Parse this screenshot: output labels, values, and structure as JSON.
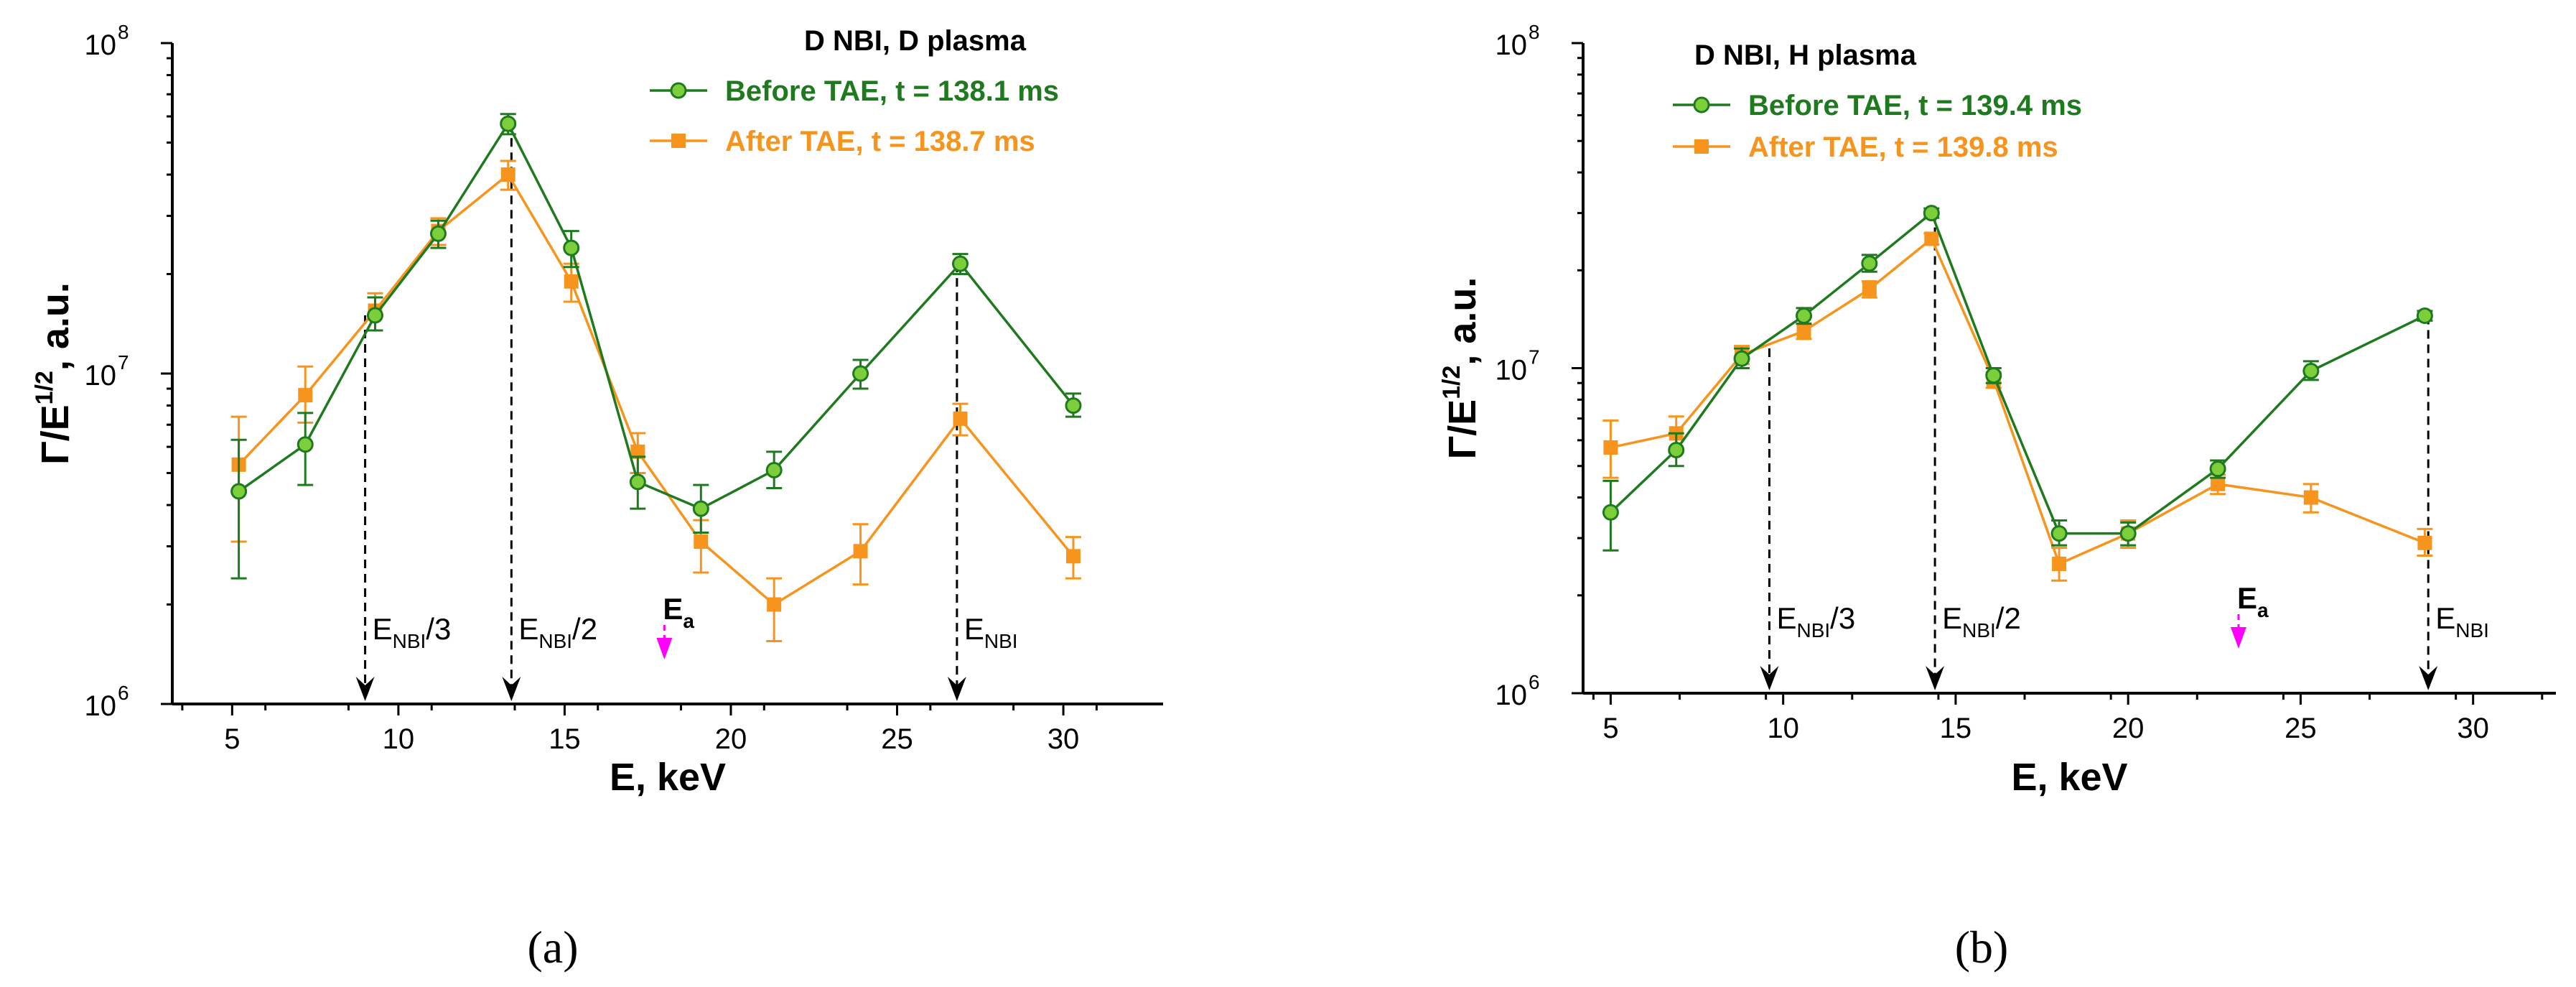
{
  "colors": {
    "before": "#1f7a1f",
    "before_marker": "#7ccf3a",
    "after": "#f7941d",
    "ea": "#ff00ff",
    "axis": "#000000"
  },
  "chart_data": [
    {
      "type": "line",
      "panel_caption": "(a)",
      "legend_title": "D NBI, D plasma",
      "xlabel": "E, keV",
      "ylabel": "Γ/E",
      "ylabel_exp": "1/2",
      "ylabel_suffix": ", a.u.",
      "xlim": [
        3.2,
        33
      ],
      "ylim_log10": [
        6,
        8
      ],
      "xticks": [
        5,
        10,
        15,
        20,
        25,
        30
      ],
      "yticks": [
        {
          "base": "10",
          "exp": "6",
          "log": 6
        },
        {
          "base": "10",
          "exp": "7",
          "log": 7
        },
        {
          "base": "10",
          "exp": "8",
          "log": 8
        }
      ],
      "series": [
        {
          "name": "Before TAE, t = 138.1 ms",
          "key": "before",
          "marker": "circle",
          "x": [
            5.2,
            7.2,
            9.3,
            11.2,
            13.3,
            15.2,
            17.2,
            19.1,
            21.3,
            23.9,
            26.9,
            30.3
          ],
          "y": [
            4400000.0,
            6100000.0,
            15000000.0,
            26500000.0,
            57000000.0,
            24000000.0,
            4700000.0,
            3900000.0,
            5100000.0,
            10000000.0,
            21500000.0,
            8000000.0
          ],
          "err_lo": [
            2400000.0,
            4600000.0,
            13500000.0,
            24000000.0,
            53000000.0,
            21000000.0,
            3900000.0,
            3300000.0,
            4500000.0,
            9000000.0,
            20000000.0,
            7400000.0
          ],
          "err_hi": [
            6300000.0,
            7600000.0,
            17000000.0,
            29000000.0,
            61000000.0,
            27000000.0,
            5600000.0,
            4600000.0,
            5800000.0,
            11000000.0,
            23000000.0,
            8700000.0
          ]
        },
        {
          "name": "After TAE, t = 138.7 ms",
          "key": "after",
          "marker": "square",
          "x": [
            5.2,
            7.2,
            9.3,
            11.2,
            13.3,
            15.2,
            17.2,
            19.1,
            21.3,
            23.9,
            26.9,
            30.3
          ],
          "y": [
            5300000.0,
            8600000.0,
            15500000.0,
            27000000.0,
            40000000.0,
            19000000.0,
            5800000.0,
            3100000.0,
            2000000.0,
            2900000.0,
            7300000.0,
            2800000.0
          ],
          "err_lo": [
            3100000.0,
            7100000.0,
            13500000.0,
            24500000.0,
            36000000.0,
            16500000.0,
            5000000.0,
            2500000.0,
            1550000.0,
            2300000.0,
            6500000.0,
            2400000.0
          ],
          "err_hi": [
            7400000.0,
            10500000.0,
            17500000.0,
            29500000.0,
            44000000.0,
            21500000.0,
            6600000.0,
            3600000.0,
            2400000.0,
            3500000.0,
            8100000.0,
            3200000.0
          ]
        }
      ],
      "markers": [
        {
          "x": 9.0,
          "top": 15000000.0,
          "label": "E",
          "sub": "NBI",
          "suffix": "/3",
          "kind": "dashed"
        },
        {
          "x": 13.4,
          "top": 57000000.0,
          "label": "E",
          "sub": "NBI",
          "suffix": "/2",
          "kind": "dashed"
        },
        {
          "x": 26.8,
          "top": 21500000.0,
          "label": "E",
          "sub": "NBI",
          "suffix": "",
          "kind": "dashed"
        },
        {
          "x": 18.0,
          "label": "E",
          "sub": "a",
          "suffix": "",
          "kind": "ea"
        }
      ]
    },
    {
      "type": "line",
      "panel_caption": "(b)",
      "legend_title": "D NBI, H plasma",
      "xlabel": "E, keV",
      "ylabel": "Γ/E",
      "ylabel_exp": "1/2",
      "ylabel_suffix": ", a.u.",
      "xlim": [
        4.2,
        32.4
      ],
      "ylim_log10": [
        6,
        8
      ],
      "xticks": [
        5,
        10,
        15,
        20,
        25,
        30
      ],
      "yticks": [
        {
          "base": "10",
          "exp": "6",
          "log": 6
        },
        {
          "base": "10",
          "exp": "7",
          "log": 7
        },
        {
          "base": "10",
          "exp": "8",
          "log": 8
        }
      ],
      "series": [
        {
          "name": "Before TAE, t = 139.4 ms",
          "key": "before",
          "marker": "circle",
          "x": [
            5.0,
            6.9,
            8.8,
            10.6,
            12.5,
            14.3,
            16.1,
            18.0,
            20.0,
            22.6,
            25.3,
            28.6
          ],
          "y": [
            3600000.0,
            5600000.0,
            10700000.0,
            14500000.0,
            21000000.0,
            30000000.0,
            9500000.0,
            3100000.0,
            3100000.0,
            4900000.0,
            9800000.0,
            14500000.0
          ],
          "err_lo": [
            2750000.0,
            5000000.0,
            10000000.0,
            13700000.0,
            19800000.0,
            29000000.0,
            9000000.0,
            2850000.0,
            2850000.0,
            4600000.0,
            9200000.0,
            14000000.0
          ],
          "err_hi": [
            4500000.0,
            6300000.0,
            11500000.0,
            15300000.0,
            22300000.0,
            31000000.0,
            10000000.0,
            3400000.0,
            3350000.0,
            5200000.0,
            10500000.0,
            15000000.0
          ]
        },
        {
          "name": "After TAE, t = 139.8 ms",
          "key": "after",
          "marker": "square",
          "x": [
            5.0,
            6.9,
            8.8,
            10.6,
            12.5,
            14.3,
            16.1,
            18.0,
            20.0,
            22.6,
            25.3,
            28.6
          ],
          "y": [
            5700000.0,
            6300000.0,
            11000000.0,
            13000000.0,
            17500000.0,
            25000000.0,
            9200000.0,
            2500000.0,
            3100000.0,
            4400000.0,
            4000000.0,
            2900000.0
          ],
          "err_lo": [
            4600000.0,
            5500000.0,
            10300000.0,
            12300000.0,
            16500000.0,
            24000000.0,
            8700000.0,
            2220000.0,
            2800000.0,
            4100000.0,
            3600000.0,
            2650000.0
          ],
          "err_hi": [
            6900000.0,
            7100000.0,
            11700000.0,
            13700000.0,
            18500000.0,
            26000000.0,
            9700000.0,
            2800000.0,
            3400000.0,
            4700000.0,
            4400000.0,
            3200000.0
          ]
        }
      ],
      "markers": [
        {
          "x": 9.6,
          "top": 11500000.0,
          "label": "E",
          "sub": "NBI",
          "suffix": "/3",
          "kind": "dashed"
        },
        {
          "x": 14.4,
          "top": 30000000.0,
          "label": "E",
          "sub": "NBI",
          "suffix": "/2",
          "kind": "dashed"
        },
        {
          "x": 28.7,
          "top": 14500000.0,
          "label": "E",
          "sub": "NBI",
          "suffix": "",
          "kind": "dashed"
        },
        {
          "x": 23.2,
          "label": "E",
          "sub": "a",
          "suffix": "",
          "kind": "ea"
        }
      ]
    }
  ]
}
